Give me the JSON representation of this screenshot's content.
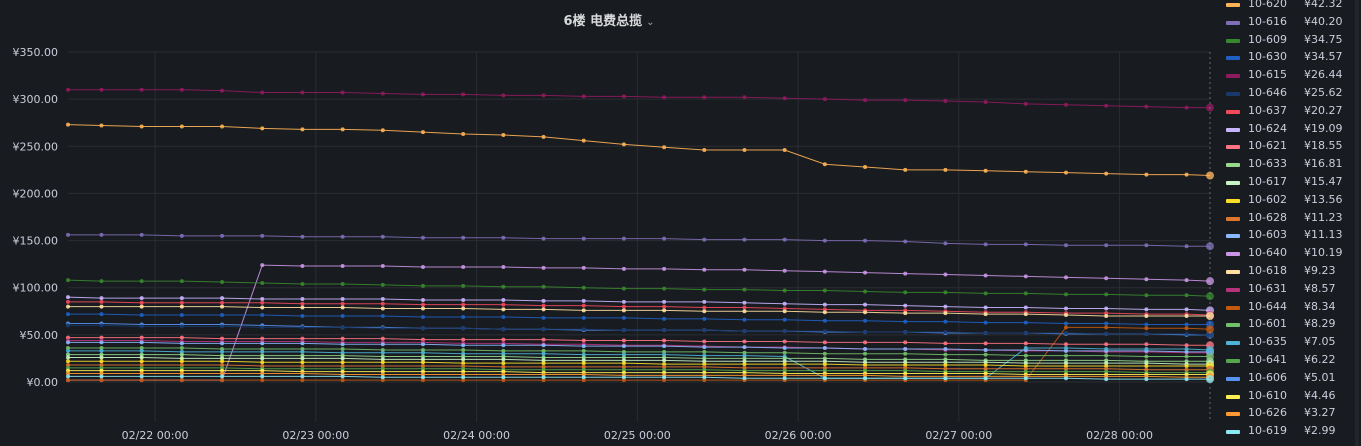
{
  "title": "6楼 电费总揽",
  "chevron_icon": "chevron-down-icon",
  "colors": {
    "background": "#181b1f",
    "grid": "#2a2d33",
    "text": "#ccccdc"
  },
  "chart_data": {
    "type": "line",
    "title": "6楼 电费总揽",
    "ylim": [
      0,
      350
    ],
    "yticks": [
      "¥0.00",
      "¥50.00",
      "¥100.00",
      "¥150.00",
      "¥200.00",
      "¥250.00",
      "¥300.00",
      "¥350.00"
    ],
    "ytick_values": [
      0,
      50,
      100,
      150,
      200,
      250,
      300,
      350
    ],
    "xlim": [
      "2025-02-21 11:00",
      "2025-02-28 13:30"
    ],
    "xticks": [
      "02/22 00:00",
      "02/23 00:00",
      "02/24 00:00",
      "02/25 00:00",
      "02/26 00:00",
      "02/27 00:00",
      "02/28 00:00"
    ],
    "xtick_values": [
      "2025-02-22 00:00",
      "2025-02-23 00:00",
      "2025-02-24 00:00",
      "2025-02-25 00:00",
      "2025-02-26 00:00",
      "2025-02-27 00:00",
      "2025-02-28 00:00"
    ],
    "grid": true,
    "legend": "right",
    "x": [
      "2025-02-21 11:00",
      "2025-02-21 16:00",
      "2025-02-21 22:00",
      "2025-02-22 04:00",
      "2025-02-22 10:00",
      "2025-02-22 16:00",
      "2025-02-22 22:00",
      "2025-02-23 04:00",
      "2025-02-23 10:00",
      "2025-02-23 16:00",
      "2025-02-23 22:00",
      "2025-02-24 04:00",
      "2025-02-24 10:00",
      "2025-02-24 16:00",
      "2025-02-24 22:00",
      "2025-02-25 04:00",
      "2025-02-25 10:00",
      "2025-02-25 16:00",
      "2025-02-25 22:00",
      "2025-02-26 04:00",
      "2025-02-26 10:00",
      "2025-02-26 16:00",
      "2025-02-26 22:00",
      "2025-02-27 04:00",
      "2025-02-27 10:00",
      "2025-02-27 16:00",
      "2025-02-27 22:00",
      "2025-02-28 04:00",
      "2025-02-28 10:00",
      "2025-02-28 13:30"
    ],
    "series": [
      {
        "name": "10-615",
        "color": "#8f1b5e",
        "values": [
          310,
          310,
          310,
          310,
          309,
          307,
          307,
          307,
          306,
          305,
          305,
          304,
          304,
          303,
          303,
          302,
          302,
          302,
          301,
          300,
          299,
          299,
          298,
          297,
          295,
          294,
          293,
          292,
          291,
          291
        ]
      },
      {
        "name": "10-620",
        "color": "#ffb357",
        "values": [
          273,
          272,
          271,
          271,
          271,
          269,
          268,
          268,
          267,
          265,
          263,
          262,
          260,
          256,
          252,
          249,
          246,
          246,
          246,
          231,
          228,
          225,
          225,
          224,
          223,
          222,
          221,
          220,
          220,
          219
        ]
      },
      {
        "name": "10-616",
        "color": "#806eb7",
        "values": [
          156,
          156,
          156,
          155,
          155,
          155,
          154,
          154,
          154,
          153,
          153,
          153,
          152,
          152,
          152,
          152,
          151,
          151,
          151,
          150,
          150,
          149,
          147,
          146,
          146,
          145,
          145,
          145,
          144,
          144
        ]
      },
      {
        "name": "10-640",
        "color": "#ca95e5",
        "values": [
          2,
          2,
          2,
          2,
          2,
          124,
          123,
          123,
          123,
          122,
          122,
          122,
          121,
          121,
          120,
          120,
          119,
          119,
          118,
          117,
          116,
          115,
          114,
          113,
          112,
          111,
          110,
          109,
          108,
          107
        ]
      },
      {
        "name": "10-609",
        "color": "#37872d",
        "values": [
          108,
          107,
          107,
          107,
          106,
          105,
          104,
          104,
          103,
          102,
          102,
          101,
          101,
          100,
          99,
          99,
          98,
          98,
          97,
          97,
          96,
          95,
          95,
          94,
          94,
          93,
          93,
          92,
          92,
          91
        ]
      },
      {
        "name": "10-624",
        "color": "#c8b4ff",
        "values": [
          90,
          89,
          89,
          89,
          89,
          88,
          88,
          88,
          88,
          87,
          87,
          87,
          86,
          86,
          85,
          85,
          85,
          84,
          83,
          82,
          82,
          81,
          80,
          79,
          79,
          78,
          78,
          77,
          77,
          76
        ]
      },
      {
        "name": "10-637",
        "color": "#f2495c",
        "values": [
          85,
          85,
          84,
          84,
          84,
          84,
          83,
          83,
          83,
          82,
          82,
          82,
          81,
          81,
          80,
          80,
          79,
          79,
          78,
          77,
          76,
          76,
          75,
          74,
          74,
          73,
          73,
          72,
          72,
          71
        ]
      },
      {
        "name": "10-618",
        "color": "#ffe0a0",
        "values": [
          80,
          80,
          80,
          80,
          80,
          79,
          79,
          79,
          78,
          78,
          78,
          77,
          77,
          76,
          76,
          76,
          75,
          75,
          75,
          74,
          74,
          73,
          73,
          72,
          72,
          71,
          70,
          70,
          70,
          70
        ]
      },
      {
        "name": "10-630",
        "color": "#1f60c4",
        "values": [
          72,
          72,
          71,
          71,
          71,
          71,
          70,
          70,
          70,
          69,
          69,
          69,
          68,
          68,
          68,
          67,
          67,
          66,
          66,
          65,
          65,
          64,
          64,
          63,
          63,
          62,
          62,
          61,
          61,
          61
        ]
      },
      {
        "name": "10-606",
        "color": "#5794f2",
        "values": [
          62,
          62,
          61,
          61,
          61,
          60,
          59,
          58,
          58,
          57,
          57,
          56,
          56,
          55,
          55,
          55,
          55,
          54,
          54,
          53,
          53,
          53,
          52,
          52,
          52,
          51,
          51,
          51,
          50,
          50
        ]
      },
      {
        "name": "10-646",
        "color": "#19396b",
        "values": [
          60,
          60,
          59,
          59,
          59,
          58,
          58,
          58,
          57,
          57,
          57,
          56,
          56,
          56,
          55,
          55,
          55,
          54,
          54,
          54,
          53,
          53,
          53,
          52,
          52,
          52,
          51,
          51,
          51,
          50
        ]
      },
      {
        "name": "10-644",
        "color": "#c4590d",
        "values": [
          2,
          2,
          2,
          2,
          2,
          2,
          2,
          2,
          2,
          2,
          2,
          2,
          2,
          2,
          2,
          2,
          2,
          2,
          2,
          2,
          2,
          2,
          2,
          2,
          2,
          58,
          58,
          57,
          57,
          56
        ]
      },
      {
        "name": "10-621",
        "color": "#ff7383",
        "values": [
          47,
          47,
          47,
          47,
          46,
          46,
          46,
          46,
          46,
          45,
          45,
          45,
          45,
          44,
          44,
          44,
          43,
          43,
          43,
          42,
          42,
          42,
          41,
          41,
          41,
          40,
          40,
          40,
          39,
          39
        ]
      },
      {
        "name": "10-631",
        "color": "#b7317b",
        "values": [
          44,
          44,
          44,
          43,
          43,
          43,
          43,
          42,
          42,
          42,
          41,
          41,
          40,
          40,
          39,
          39,
          38,
          37,
          37,
          36,
          35,
          35,
          34,
          34,
          33,
          33,
          32,
          32,
          31,
          31
        ]
      },
      {
        "name": "10-603",
        "color": "#8ab8ff",
        "values": [
          42,
          42,
          42,
          41,
          41,
          41,
          41,
          40,
          40,
          40,
          39,
          39,
          39,
          38,
          38,
          38,
          37,
          37,
          36,
          36,
          35,
          35,
          35,
          34,
          34,
          33,
          33,
          33,
          32,
          32
        ]
      },
      {
        "name": "10-601",
        "color": "#73bf69",
        "values": [
          36,
          36,
          36,
          36,
          35,
          35,
          35,
          35,
          34,
          34,
          34,
          33,
          33,
          33,
          32,
          32,
          32,
          31,
          31,
          30,
          30,
          30,
          29,
          29,
          28,
          28,
          28,
          27,
          27,
          27
        ]
      },
      {
        "name": "10-635",
        "color": "#4eb4d7",
        "values": [
          33,
          33,
          33,
          32,
          32,
          32,
          32,
          31,
          31,
          31,
          30,
          30,
          30,
          29,
          29,
          29,
          28,
          28,
          27,
          4,
          4,
          4,
          4,
          4,
          36,
          36,
          35,
          35,
          35,
          34
        ]
      },
      {
        "name": "10-633",
        "color": "#96d98d",
        "values": [
          29,
          29,
          29,
          29,
          28,
          28,
          28,
          28,
          27,
          27,
          27,
          27,
          26,
          26,
          26,
          26,
          25,
          25,
          25,
          25,
          24,
          24,
          24,
          23,
          23,
          23,
          23,
          22,
          22,
          22
        ]
      },
      {
        "name": "10-617",
        "color": "#c8f2c2",
        "values": [
          26,
          26,
          26,
          25,
          25,
          25,
          25,
          25,
          24,
          24,
          24,
          24,
          23,
          23,
          23,
          23,
          22,
          22,
          22,
          22,
          21,
          21,
          21,
          21,
          20,
          20,
          20,
          20,
          19,
          19
        ]
      },
      {
        "name": "10-602",
        "color": "#fade2a",
        "values": [
          22,
          22,
          22,
          22,
          22,
          21,
          21,
          21,
          21,
          21,
          20,
          20,
          20,
          20,
          20,
          19,
          19,
          19,
          19,
          19,
          18,
          18,
          18,
          18,
          17,
          17,
          17,
          17,
          17,
          17
        ]
      },
      {
        "name": "10-628",
        "color": "#e0752d",
        "values": [
          18,
          18,
          18,
          18,
          18,
          17,
          17,
          17,
          17,
          17,
          17,
          16,
          16,
          16,
          16,
          16,
          16,
          15,
          15,
          15,
          15,
          15,
          14,
          14,
          14,
          14,
          14,
          13,
          13,
          13
        ]
      },
      {
        "name": "10-641",
        "color": "#56a64b",
        "values": [
          15,
          15,
          15,
          15,
          15,
          14,
          14,
          14,
          14,
          14,
          14,
          13,
          13,
          13,
          13,
          13,
          13,
          12,
          12,
          12,
          12,
          12,
          11,
          11,
          11,
          11,
          11,
          10,
          10,
          10
        ]
      },
      {
        "name": "10-610",
        "color": "#ffee52",
        "values": [
          12,
          12,
          12,
          12,
          12,
          12,
          11,
          11,
          11,
          11,
          11,
          11,
          10,
          10,
          10,
          10,
          10,
          10,
          9,
          9,
          9,
          9,
          9,
          9,
          8,
          8,
          8,
          8,
          8,
          8
        ]
      },
      {
        "name": "10-626",
        "color": "#ff9830",
        "values": [
          9,
          9,
          9,
          9,
          9,
          9,
          9,
          8,
          8,
          8,
          8,
          8,
          8,
          8,
          7,
          7,
          7,
          7,
          7,
          7,
          7,
          6,
          6,
          6,
          6,
          6,
          6,
          6,
          5,
          5
        ]
      },
      {
        "name": "10-619",
        "color": "#8ae8f2",
        "values": [
          6,
          6,
          6,
          6,
          6,
          6,
          6,
          6,
          5,
          5,
          5,
          5,
          5,
          5,
          5,
          5,
          5,
          4,
          4,
          4,
          4,
          4,
          4,
          4,
          4,
          4,
          3,
          3,
          3,
          3
        ]
      }
    ]
  },
  "legend": [
    {
      "name": "10-620",
      "value": "¥42.32",
      "color": "#ffb357"
    },
    {
      "name": "10-616",
      "value": "¥40.20",
      "color": "#806eb7"
    },
    {
      "name": "10-609",
      "value": "¥34.75",
      "color": "#37872d"
    },
    {
      "name": "10-630",
      "value": "¥34.57",
      "color": "#1f60c4"
    },
    {
      "name": "10-615",
      "value": "¥26.44",
      "color": "#8f1b5e"
    },
    {
      "name": "10-646",
      "value": "¥25.62",
      "color": "#19396b"
    },
    {
      "name": "10-637",
      "value": "¥20.27",
      "color": "#f2495c"
    },
    {
      "name": "10-624",
      "value": "¥19.09",
      "color": "#c8b4ff"
    },
    {
      "name": "10-621",
      "value": "¥18.55",
      "color": "#ff7383"
    },
    {
      "name": "10-633",
      "value": "¥16.81",
      "color": "#96d98d"
    },
    {
      "name": "10-617",
      "value": "¥15.47",
      "color": "#c8f2c2"
    },
    {
      "name": "10-602",
      "value": "¥13.56",
      "color": "#fade2a"
    },
    {
      "name": "10-628",
      "value": "¥11.23",
      "color": "#e0752d"
    },
    {
      "name": "10-603",
      "value": "¥11.13",
      "color": "#8ab8ff"
    },
    {
      "name": "10-640",
      "value": "¥10.19",
      "color": "#ca95e5"
    },
    {
      "name": "10-618",
      "value": "¥9.23",
      "color": "#ffe0a0"
    },
    {
      "name": "10-631",
      "value": "¥8.57",
      "color": "#b7317b"
    },
    {
      "name": "10-644",
      "value": "¥8.34",
      "color": "#c4590d"
    },
    {
      "name": "10-601",
      "value": "¥8.29",
      "color": "#73bf69"
    },
    {
      "name": "10-635",
      "value": "¥7.05",
      "color": "#4eb4d7"
    },
    {
      "name": "10-641",
      "value": "¥6.22",
      "color": "#56a64b"
    },
    {
      "name": "10-606",
      "value": "¥5.01",
      "color": "#5794f2"
    },
    {
      "name": "10-610",
      "value": "¥4.46",
      "color": "#ffee52"
    },
    {
      "name": "10-626",
      "value": "¥3.27",
      "color": "#ff9830"
    },
    {
      "name": "10-619",
      "value": "¥2.99",
      "color": "#8ae8f2"
    }
  ]
}
